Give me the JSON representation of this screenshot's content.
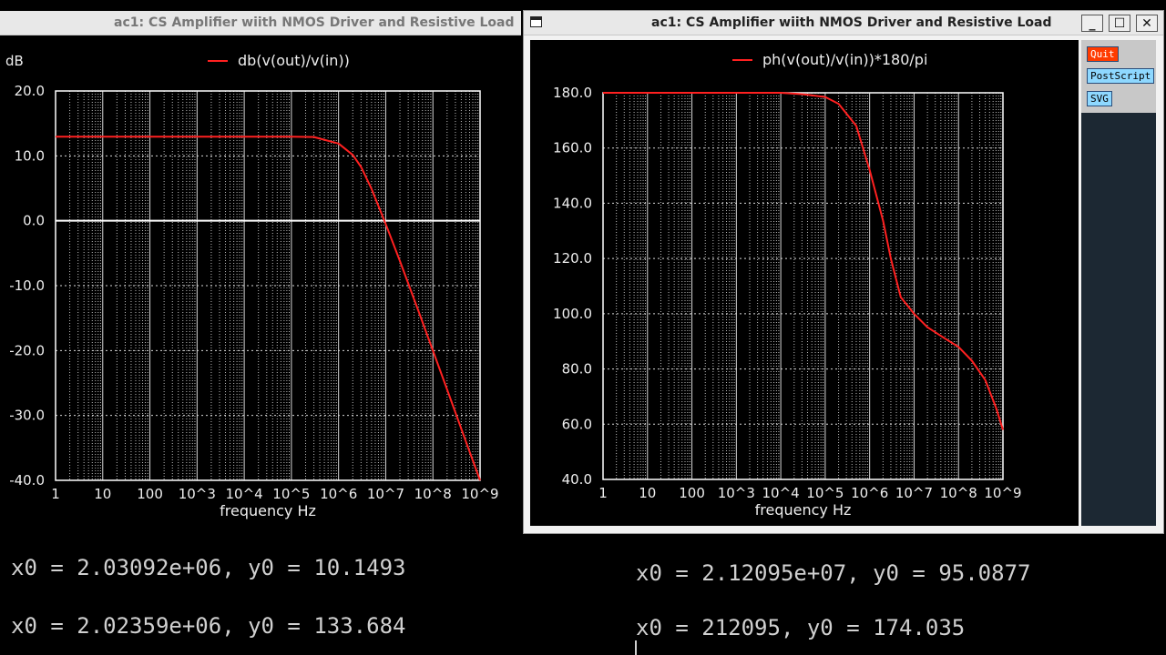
{
  "windows": {
    "left": {
      "title": "ac1: CS Amplifier wiith NMOS Driver and Resistive Load"
    },
    "right": {
      "title": "ac1: CS Amplifier wiith NMOS Driver and Resistive Load",
      "controls": {
        "minimize": "_",
        "maximize": "☐",
        "close": "✕"
      }
    }
  },
  "panel": {
    "quit": "Quit",
    "postscript": "PostScript",
    "svg": "SVG"
  },
  "terminal": {
    "left_lines": [
      "x0 = 2.03092e+06, y0 = 10.1493",
      "x0 = 2.02359e+06, y0 = 133.684"
    ],
    "right_lines": [
      "x0 = 2.12095e+07, y0 = 95.0877",
      "x0 = 212095, y0 = 174.035"
    ]
  },
  "chart_data": [
    {
      "type": "line",
      "unit_label": "dB",
      "xlabel": "frequency    Hz",
      "xscale": "log",
      "xlim": [
        1,
        1000000000
      ],
      "ylim": [
        -40,
        20
      ],
      "grid": true,
      "legend": "top-center",
      "x_ticks": [
        "1",
        "10",
        "100",
        "10^3",
        "10^4",
        "10^5",
        "10^6",
        "10^7",
        "10^8",
        "10^9"
      ],
      "y_ticks": [
        "20.0",
        "10.0",
        "0.0",
        "-10.0",
        "-20.0",
        "-30.0",
        "-40.0"
      ],
      "series": [
        {
          "name": "db(v(out)/v(in))",
          "color": "#ff2020",
          "x": [
            1,
            100000,
            300000,
            1000000,
            2000000,
            3000000,
            5000000,
            10000000,
            20000000,
            50000000,
            100000000,
            200000000,
            500000000,
            1000000000
          ],
          "y": [
            12.95,
            12.95,
            12.9,
            11.9,
            10.15,
            8.3,
            4.9,
            -0.5,
            -6.2,
            -14.0,
            -20.0,
            -26.0,
            -34.0,
            -40.0
          ]
        }
      ]
    },
    {
      "type": "line",
      "xlabel": "frequency    Hz",
      "xscale": "log",
      "xlim": [
        1,
        1000000000
      ],
      "ylim": [
        40,
        180
      ],
      "grid": true,
      "legend": "top-center",
      "x_ticks": [
        "1",
        "10",
        "100",
        "10^3",
        "10^4",
        "10^5",
        "10^6",
        "10^7",
        "10^8",
        "10^9"
      ],
      "y_ticks": [
        "180.0",
        "160.0",
        "140.0",
        "120.0",
        "100.0",
        "80.0",
        "60.0",
        "40.0"
      ],
      "series": [
        {
          "name": "ph(v(out)/v(in))*180/pi",
          "color": "#ff2020",
          "x": [
            1,
            10000,
            30000,
            100000,
            200000,
            500000,
            1000000,
            2000000,
            3000000,
            5000000,
            10000000,
            20000000,
            50000000,
            100000000,
            200000000,
            400000000,
            700000000,
            1000000000
          ],
          "y": [
            180,
            180,
            179.5,
            178.5,
            176,
            168,
            152,
            133.7,
            120,
            106,
            100,
            95.1,
            91,
            88,
            83,
            76,
            66,
            58
          ]
        }
      ]
    }
  ]
}
